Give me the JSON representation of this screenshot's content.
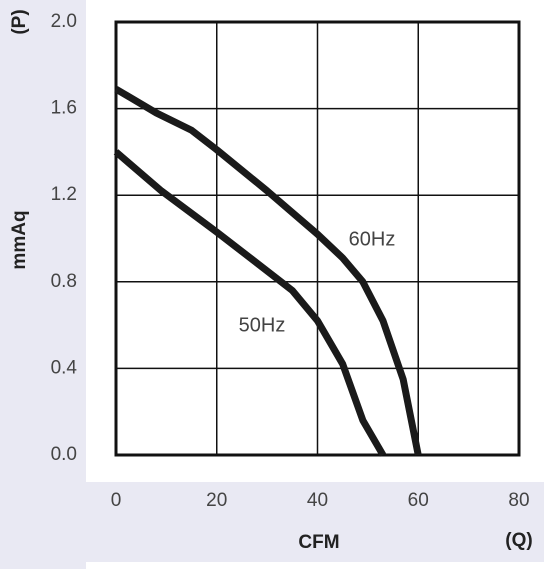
{
  "chart_data": {
    "type": "line",
    "xlabel": "CFM",
    "x_symbol": "(Q)",
    "ylabel": "mmAq",
    "y_symbol": "(P)",
    "xlim": [
      0,
      80
    ],
    "xticks": [
      0,
      20,
      40,
      60,
      80
    ],
    "ylim": [
      0,
      2
    ],
    "yticks": [
      {
        "value": 0,
        "label": "0.0"
      },
      0.4,
      0.8,
      1.2,
      1.6,
      {
        "value": 2,
        "label": "2.0"
      }
    ],
    "grid": true,
    "series": [
      {
        "name": "60Hz",
        "color": "#1a1a1a",
        "x": [
          0,
          8,
          15,
          20,
          30,
          40,
          45,
          49,
          53,
          57,
          60
        ],
        "values": [
          1.69,
          1.58,
          1.5,
          1.41,
          1.22,
          1.02,
          0.91,
          0.8,
          0.62,
          0.35,
          0
        ]
      },
      {
        "name": "50Hz",
        "color": "#1a1a1a",
        "x": [
          0,
          9,
          20,
          35,
          40,
          45,
          49,
          53
        ],
        "values": [
          1.4,
          1.22,
          1.03,
          0.76,
          0.62,
          0.42,
          0.16,
          0
        ]
      }
    ]
  }
}
